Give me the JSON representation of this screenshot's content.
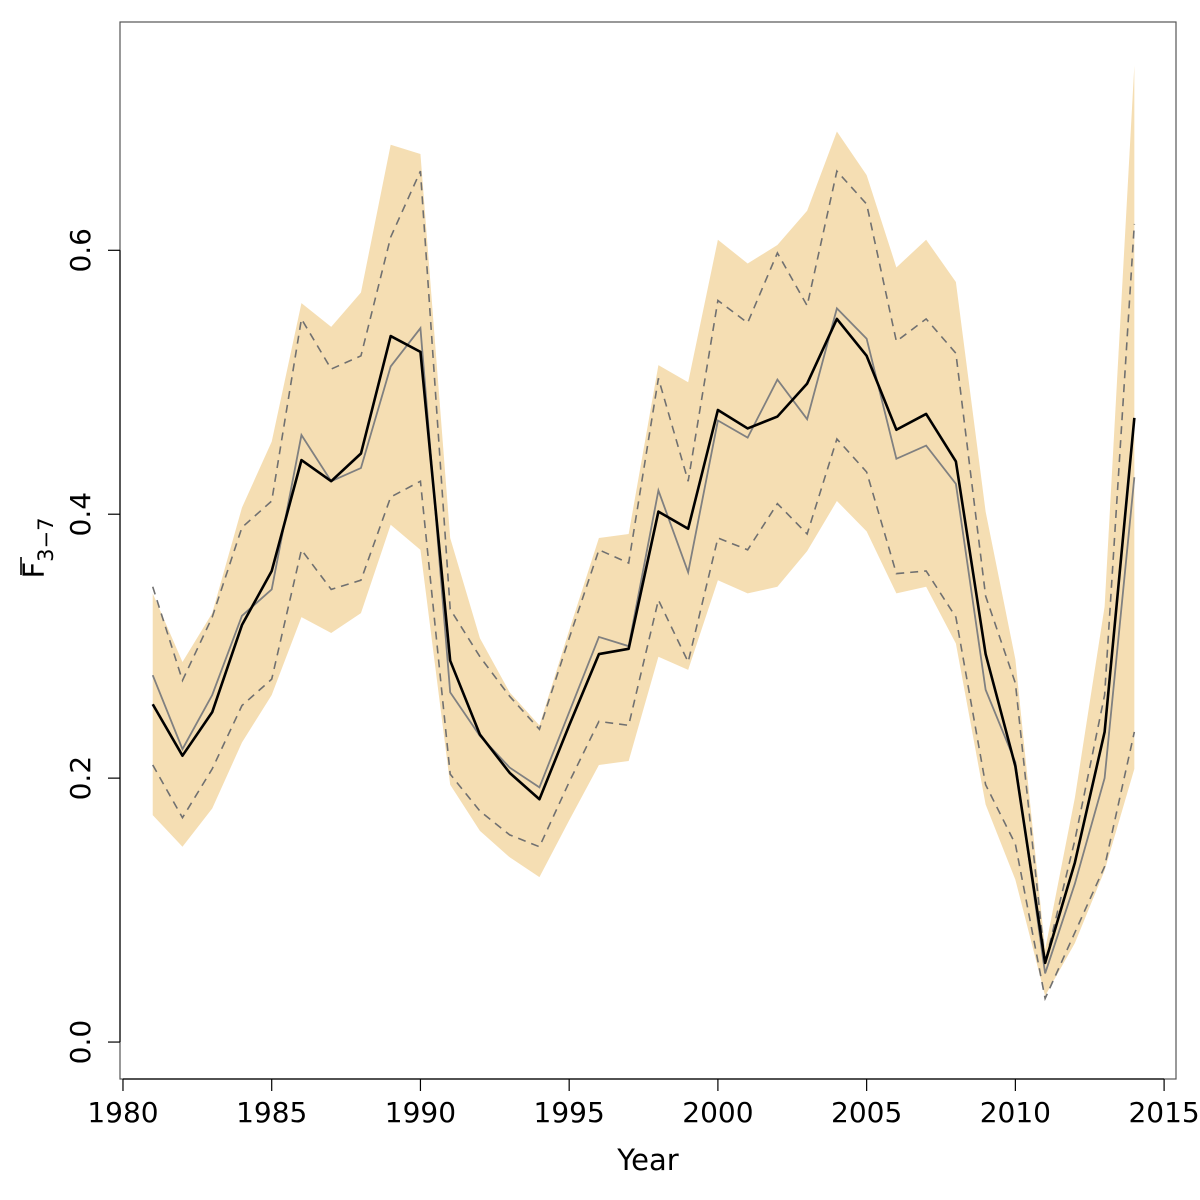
{
  "chart_data": {
    "type": "line",
    "title": "",
    "xlabel": "Year",
    "ylabel": {
      "symbol": "F",
      "subscript": "3−7"
    },
    "xlim": [
      1979.9,
      2015.4
    ],
    "ylim": [
      -0.028,
      0.773
    ],
    "x_ticks": [
      1980,
      1985,
      1990,
      1995,
      2000,
      2005,
      2010,
      2015
    ],
    "y_ticks": [
      0.0,
      0.2,
      0.4,
      0.6
    ],
    "y_tick_labels": [
      "0.0",
      "0.2",
      "0.4",
      "0.6"
    ],
    "grid": false,
    "legend": "none",
    "colors": {
      "band": "#f5deb3",
      "main": "#000000",
      "secondary": "#808080",
      "axis": "#000000",
      "frame": "#555555"
    },
    "x": [
      1981,
      1982,
      1983,
      1984,
      1985,
      1986,
      1987,
      1988,
      1989,
      1990,
      1991,
      1992,
      1993,
      1994,
      1995,
      1996,
      1997,
      1998,
      1999,
      2000,
      2001,
      2002,
      2003,
      2004,
      2005,
      2006,
      2007,
      2008,
      2009,
      2010,
      2011,
      2012,
      2013,
      2014
    ],
    "series": [
      {
        "role": "band_upper",
        "style": "filled band",
        "values": [
          0.34,
          0.288,
          0.325,
          0.405,
          0.455,
          0.56,
          0.542,
          0.568,
          0.68,
          0.673,
          0.382,
          0.306,
          0.265,
          0.24,
          0.312,
          0.382,
          0.385,
          0.513,
          0.5,
          0.608,
          0.59,
          0.604,
          0.63,
          0.69,
          0.657,
          0.587,
          0.608,
          0.576,
          0.402,
          0.29,
          0.07,
          0.185,
          0.33,
          0.74
        ]
      },
      {
        "role": "band_lower",
        "style": "filled band",
        "values": [
          0.172,
          0.148,
          0.177,
          0.227,
          0.263,
          0.322,
          0.31,
          0.325,
          0.392,
          0.373,
          0.195,
          0.16,
          0.14,
          0.125,
          0.168,
          0.21,
          0.213,
          0.292,
          0.282,
          0.35,
          0.34,
          0.345,
          0.372,
          0.41,
          0.387,
          0.34,
          0.345,
          0.302,
          0.18,
          0.123,
          0.035,
          0.075,
          0.13,
          0.207
        ]
      },
      {
        "role": "dashed_upper",
        "style": "dashed gray line",
        "values": [
          0.345,
          0.274,
          0.322,
          0.39,
          0.41,
          0.548,
          0.51,
          0.52,
          0.61,
          0.66,
          0.328,
          0.292,
          0.262,
          0.237,
          0.306,
          0.373,
          0.363,
          0.503,
          0.425,
          0.562,
          0.545,
          0.598,
          0.558,
          0.66,
          0.635,
          0.531,
          0.548,
          0.522,
          0.338,
          0.272,
          0.06,
          0.153,
          0.263,
          0.62
        ]
      },
      {
        "role": "dashed_lower",
        "style": "dashed gray line",
        "values": [
          0.21,
          0.17,
          0.207,
          0.255,
          0.275,
          0.373,
          0.343,
          0.35,
          0.413,
          0.425,
          0.203,
          0.175,
          0.157,
          0.148,
          0.197,
          0.243,
          0.24,
          0.335,
          0.288,
          0.382,
          0.373,
          0.408,
          0.385,
          0.457,
          0.432,
          0.355,
          0.357,
          0.322,
          0.195,
          0.15,
          0.033,
          0.083,
          0.133,
          0.235
        ]
      },
      {
        "role": "secondary",
        "style": "solid gray line",
        "values": [
          0.278,
          0.222,
          0.263,
          0.323,
          0.343,
          0.46,
          0.425,
          0.435,
          0.512,
          0.541,
          0.265,
          0.232,
          0.208,
          0.193,
          0.25,
          0.307,
          0.3,
          0.418,
          0.356,
          0.471,
          0.458,
          0.502,
          0.472,
          0.556,
          0.533,
          0.442,
          0.452,
          0.423,
          0.267,
          0.212,
          0.052,
          0.12,
          0.2,
          0.428
        ]
      },
      {
        "role": "main",
        "style": "solid black line",
        "values": [
          0.256,
          0.217,
          0.25,
          0.316,
          0.357,
          0.441,
          0.425,
          0.446,
          0.535,
          0.523,
          0.289,
          0.233,
          0.204,
          0.184,
          0.24,
          0.294,
          0.298,
          0.402,
          0.389,
          0.479,
          0.465,
          0.474,
          0.499,
          0.548,
          0.52,
          0.464,
          0.476,
          0.44,
          0.294,
          0.209,
          0.06,
          0.136,
          0.235,
          0.473
        ]
      }
    ]
  }
}
